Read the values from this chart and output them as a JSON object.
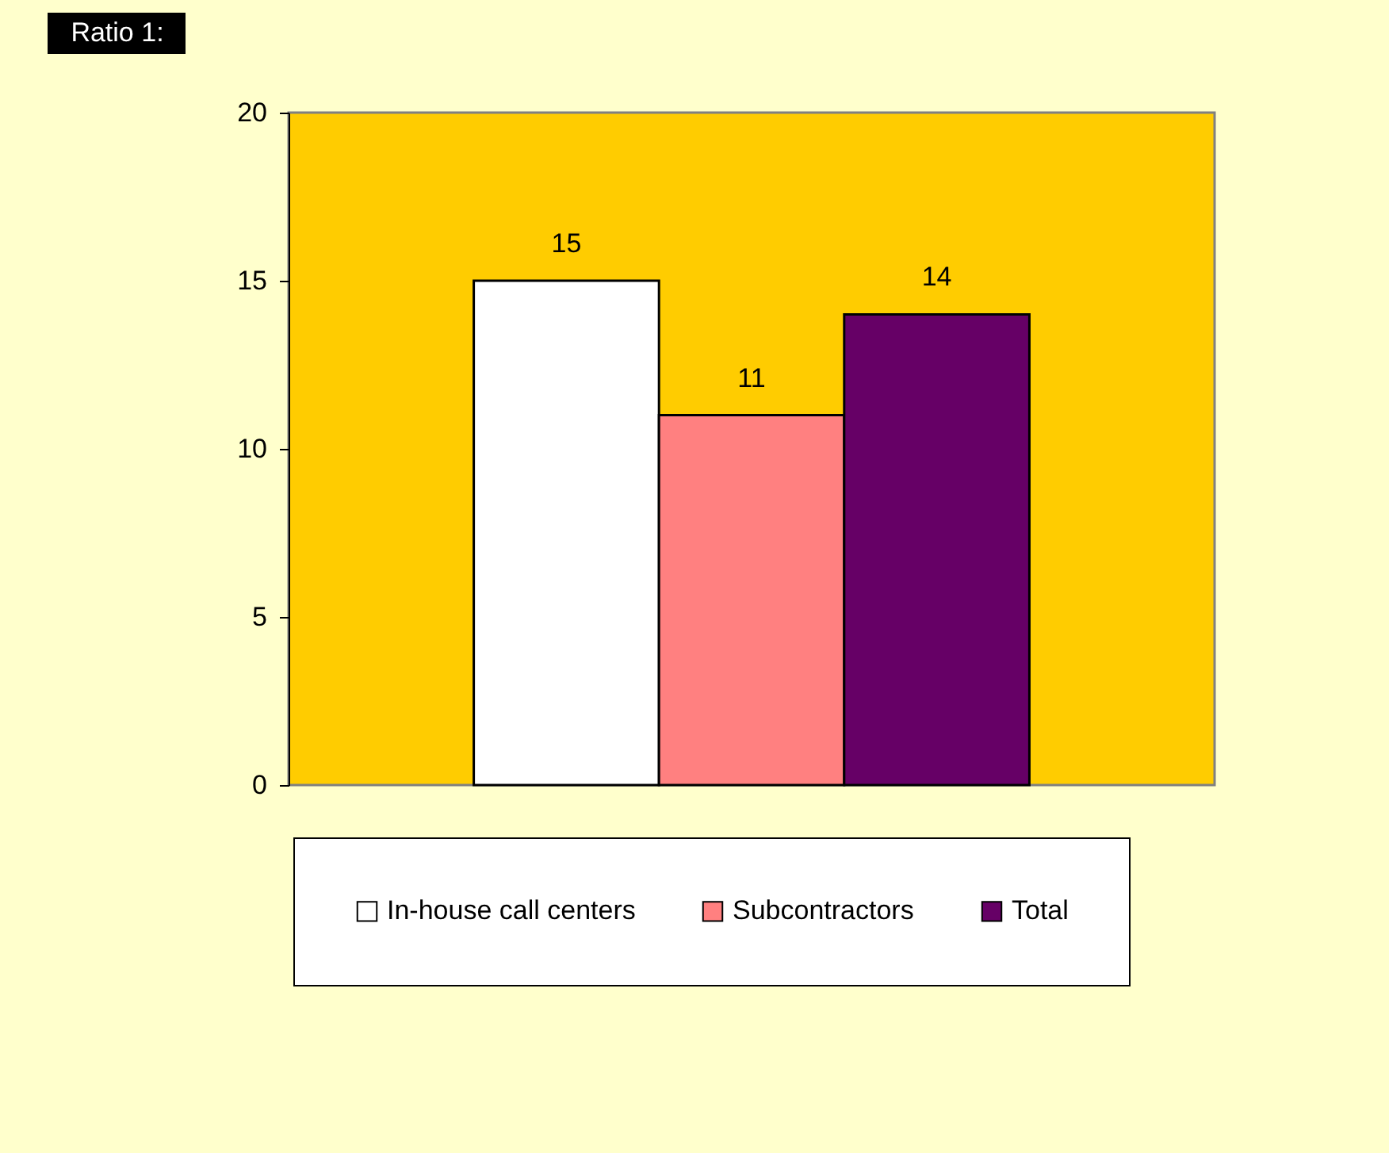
{
  "chart_data": {
    "type": "bar",
    "title": "Ratio 1:",
    "categories": [
      null
    ],
    "series": [
      {
        "name": "In-house call centers",
        "color": "#ffffff",
        "values": [
          15
        ]
      },
      {
        "name": "Subcontractors",
        "color": "#ff8080",
        "values": [
          11
        ]
      },
      {
        "name": "Total",
        "color": "#660066",
        "values": [
          14
        ]
      }
    ],
    "ylim": [
      0,
      20
    ],
    "yticks": [
      0,
      5,
      10,
      15,
      20
    ],
    "grid": false,
    "legend": "bottom",
    "data_labels": true,
    "tick_labels": "y"
  }
}
